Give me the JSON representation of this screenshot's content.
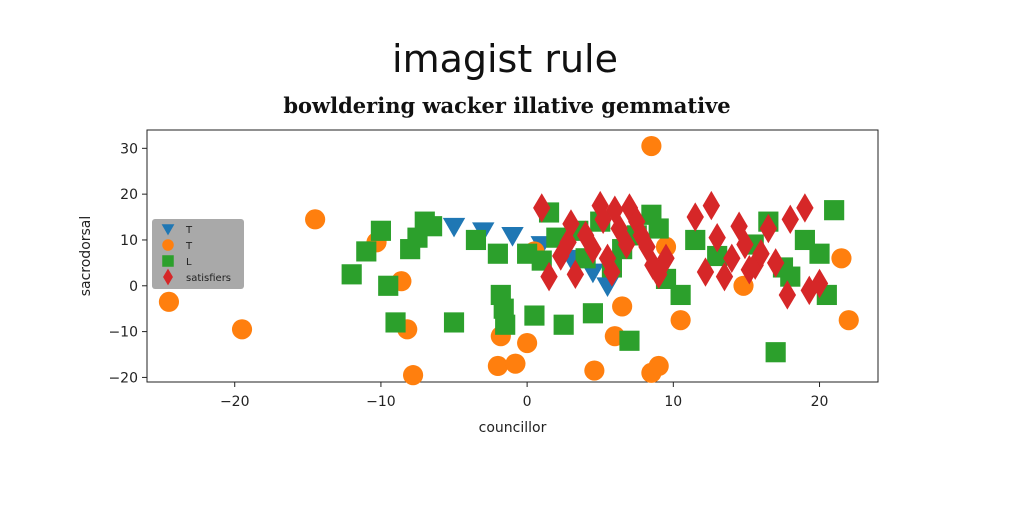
{
  "chart_data": {
    "type": "scatter",
    "title": "imagist rule",
    "subtitle": "bowldering wacker illative gemmative",
    "xlabel": "councillor",
    "ylabel": "sacrodorsal",
    "xlim": [
      -26,
      24
    ],
    "ylim": [
      -21,
      34
    ],
    "xticks": [
      -20,
      -10,
      0,
      10,
      20
    ],
    "yticks": [
      -20,
      -10,
      0,
      10,
      20,
      30
    ],
    "grid": false,
    "legend_position": "center-left",
    "series": [
      {
        "name": "T",
        "marker": "triangle-down",
        "color": "#1f77b4",
        "points": [
          [
            -5,
            13
          ],
          [
            -3,
            12
          ],
          [
            -1,
            11
          ],
          [
            1,
            9
          ],
          [
            3,
            6
          ],
          [
            4.5,
            3
          ],
          [
            5.5,
            0
          ]
        ]
      },
      {
        "name": "T",
        "marker": "circle",
        "color": "#ff7f0e",
        "points": [
          [
            8.5,
            30.5
          ],
          [
            -14.5,
            14.5
          ],
          [
            -10.3,
            9.5
          ],
          [
            -8.6,
            1
          ],
          [
            -24.5,
            -3.5
          ],
          [
            -19.5,
            -9.5
          ],
          [
            -8.2,
            -9.5
          ],
          [
            -7.8,
            -19.5
          ],
          [
            -2,
            -17.5
          ],
          [
            -0.8,
            -17
          ],
          [
            0,
            -12.5
          ],
          [
            -1.8,
            -11
          ],
          [
            0.5,
            7.5
          ],
          [
            4.6,
            -18.5
          ],
          [
            6,
            -11
          ],
          [
            6.5,
            -4.5
          ],
          [
            8.5,
            -19
          ],
          [
            9,
            -17.5
          ],
          [
            9.5,
            8.5
          ],
          [
            10.5,
            -7.5
          ],
          [
            14.8,
            0
          ],
          [
            21.5,
            6
          ],
          [
            22,
            -7.5
          ]
        ]
      },
      {
        "name": "L",
        "marker": "square",
        "color": "#2ca02c",
        "points": [
          [
            -12,
            2.5
          ],
          [
            -11,
            7.5
          ],
          [
            -10,
            12
          ],
          [
            -9.5,
            0
          ],
          [
            -9,
            -8
          ],
          [
            -8,
            8
          ],
          [
            -7.5,
            10.5
          ],
          [
            -7,
            14
          ],
          [
            -6.5,
            13
          ],
          [
            -5,
            -8
          ],
          [
            -3.5,
            10
          ],
          [
            -2,
            7
          ],
          [
            -1.8,
            -2
          ],
          [
            -1.6,
            -5
          ],
          [
            -1.5,
            -8.5
          ],
          [
            0,
            7
          ],
          [
            0.5,
            -6.5
          ],
          [
            1,
            5.5
          ],
          [
            1.5,
            16
          ],
          [
            2,
            10.5
          ],
          [
            2.5,
            -8.5
          ],
          [
            3.5,
            12
          ],
          [
            4,
            6
          ],
          [
            4.5,
            -6
          ],
          [
            5,
            14
          ],
          [
            5.8,
            4
          ],
          [
            6.5,
            8
          ],
          [
            7,
            -12
          ],
          [
            7.5,
            11
          ],
          [
            8.5,
            15.5
          ],
          [
            9,
            12.5
          ],
          [
            9.5,
            1.5
          ],
          [
            10.5,
            -2
          ],
          [
            11.5,
            10
          ],
          [
            13,
            6.5
          ],
          [
            15.5,
            9
          ],
          [
            16.5,
            14
          ],
          [
            17,
            -14.5
          ],
          [
            17.5,
            4
          ],
          [
            18,
            2
          ],
          [
            19,
            10
          ],
          [
            20,
            7
          ],
          [
            20.5,
            -2
          ],
          [
            21,
            16.5
          ]
        ]
      },
      {
        "name": "satisfiers",
        "marker": "diamond",
        "color": "#d62728",
        "points": [
          [
            1,
            17
          ],
          [
            1.5,
            2
          ],
          [
            2.3,
            6.5
          ],
          [
            2.8,
            9.5
          ],
          [
            3,
            13.5
          ],
          [
            3.3,
            2.5
          ],
          [
            4,
            11
          ],
          [
            4.5,
            8
          ],
          [
            5,
            17.5
          ],
          [
            5.2,
            14.5
          ],
          [
            5.5,
            6
          ],
          [
            5.8,
            3
          ],
          [
            6,
            16.5
          ],
          [
            6.3,
            12.5
          ],
          [
            6.8,
            9
          ],
          [
            7,
            17
          ],
          [
            7.5,
            14
          ],
          [
            7.8,
            11
          ],
          [
            8.2,
            8.5
          ],
          [
            8.6,
            4.5
          ],
          [
            9,
            2.5
          ],
          [
            9.5,
            6
          ],
          [
            11.5,
            15
          ],
          [
            12.2,
            3
          ],
          [
            12.6,
            17.5
          ],
          [
            13,
            10.5
          ],
          [
            13.5,
            2
          ],
          [
            14,
            6
          ],
          [
            14.5,
            13
          ],
          [
            14.9,
            9
          ],
          [
            15.2,
            3.5
          ],
          [
            15.6,
            4.5
          ],
          [
            16,
            7
          ],
          [
            16.5,
            12.5
          ],
          [
            17,
            5
          ],
          [
            17.8,
            -2
          ],
          [
            18,
            14.5
          ],
          [
            19,
            17
          ],
          [
            19.3,
            -1
          ],
          [
            20,
            0.5
          ]
        ]
      }
    ]
  }
}
